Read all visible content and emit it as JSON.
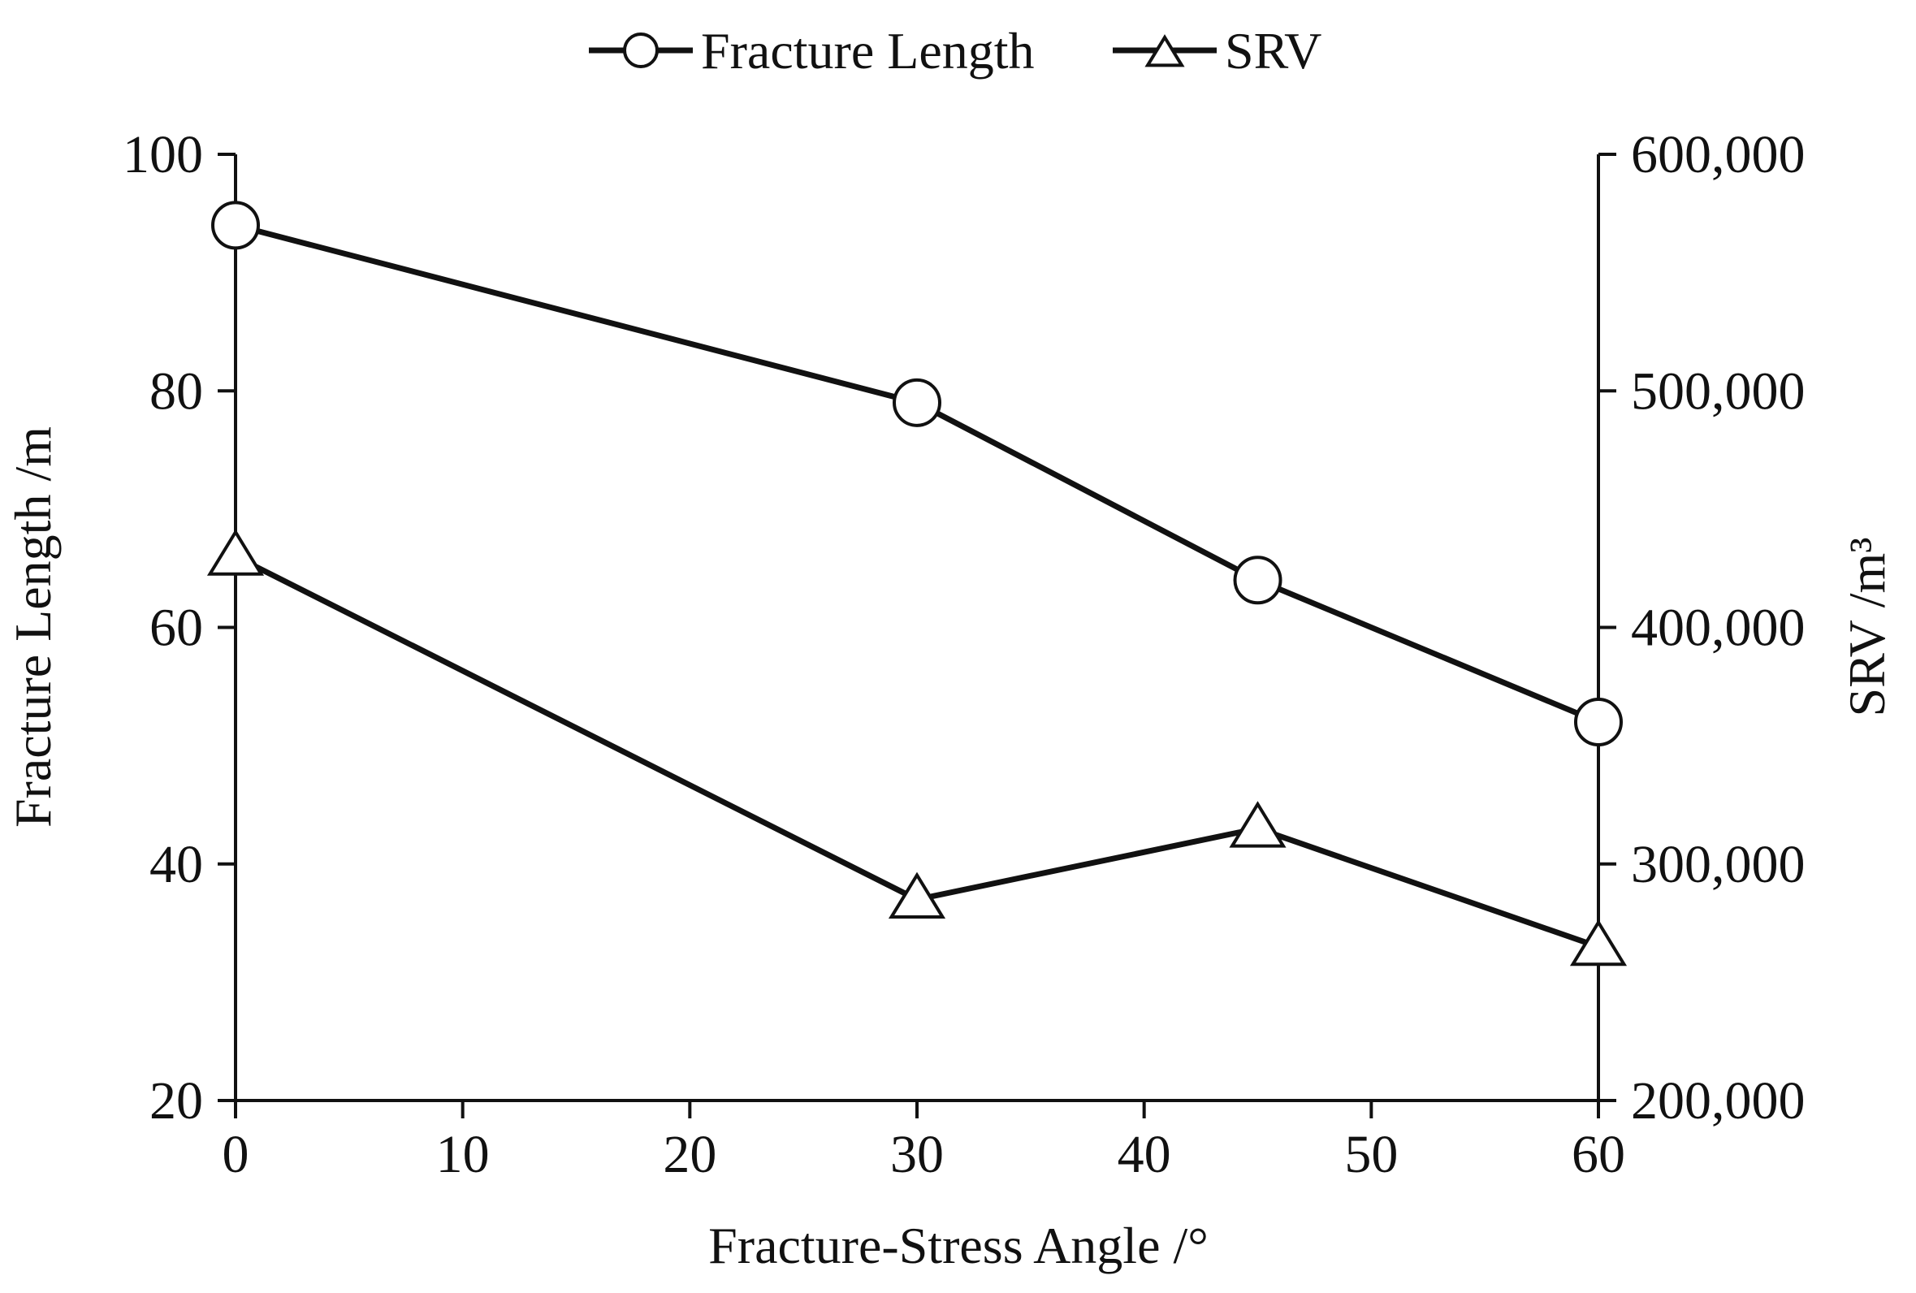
{
  "chart_data": {
    "type": "line",
    "title": "",
    "xlabel": "Fracture-Stress Angle /°",
    "ylabel_left": "Fracture Length /m",
    "ylabel_right": "SRV /m³",
    "xlim": [
      0,
      60
    ],
    "ylim_left": [
      20,
      100
    ],
    "ylim_right": [
      200000,
      600000
    ],
    "x_ticks": [
      "0",
      "10",
      "20",
      "30",
      "40",
      "50",
      "60"
    ],
    "y_left_ticks": [
      "20",
      "40",
      "60",
      "80",
      "100"
    ],
    "y_right_ticks": [
      "200,000",
      "300,000",
      "400,000",
      "500,000",
      "600,000"
    ],
    "grid": false,
    "legend_position": "top-center",
    "series": [
      {
        "name": "Fracture Length",
        "axis": "left",
        "marker": "circle",
        "x": [
          0,
          30,
          45,
          60
        ],
        "values": [
          94,
          79,
          64,
          52
        ]
      },
      {
        "name": "SRV",
        "axis": "right",
        "marker": "triangle",
        "x": [
          0,
          30,
          45,
          60
        ],
        "values": [
          430000,
          285000,
          315000,
          265000
        ]
      }
    ],
    "colors": {
      "line": "#111111",
      "marker_fill": "#ffffff"
    }
  }
}
